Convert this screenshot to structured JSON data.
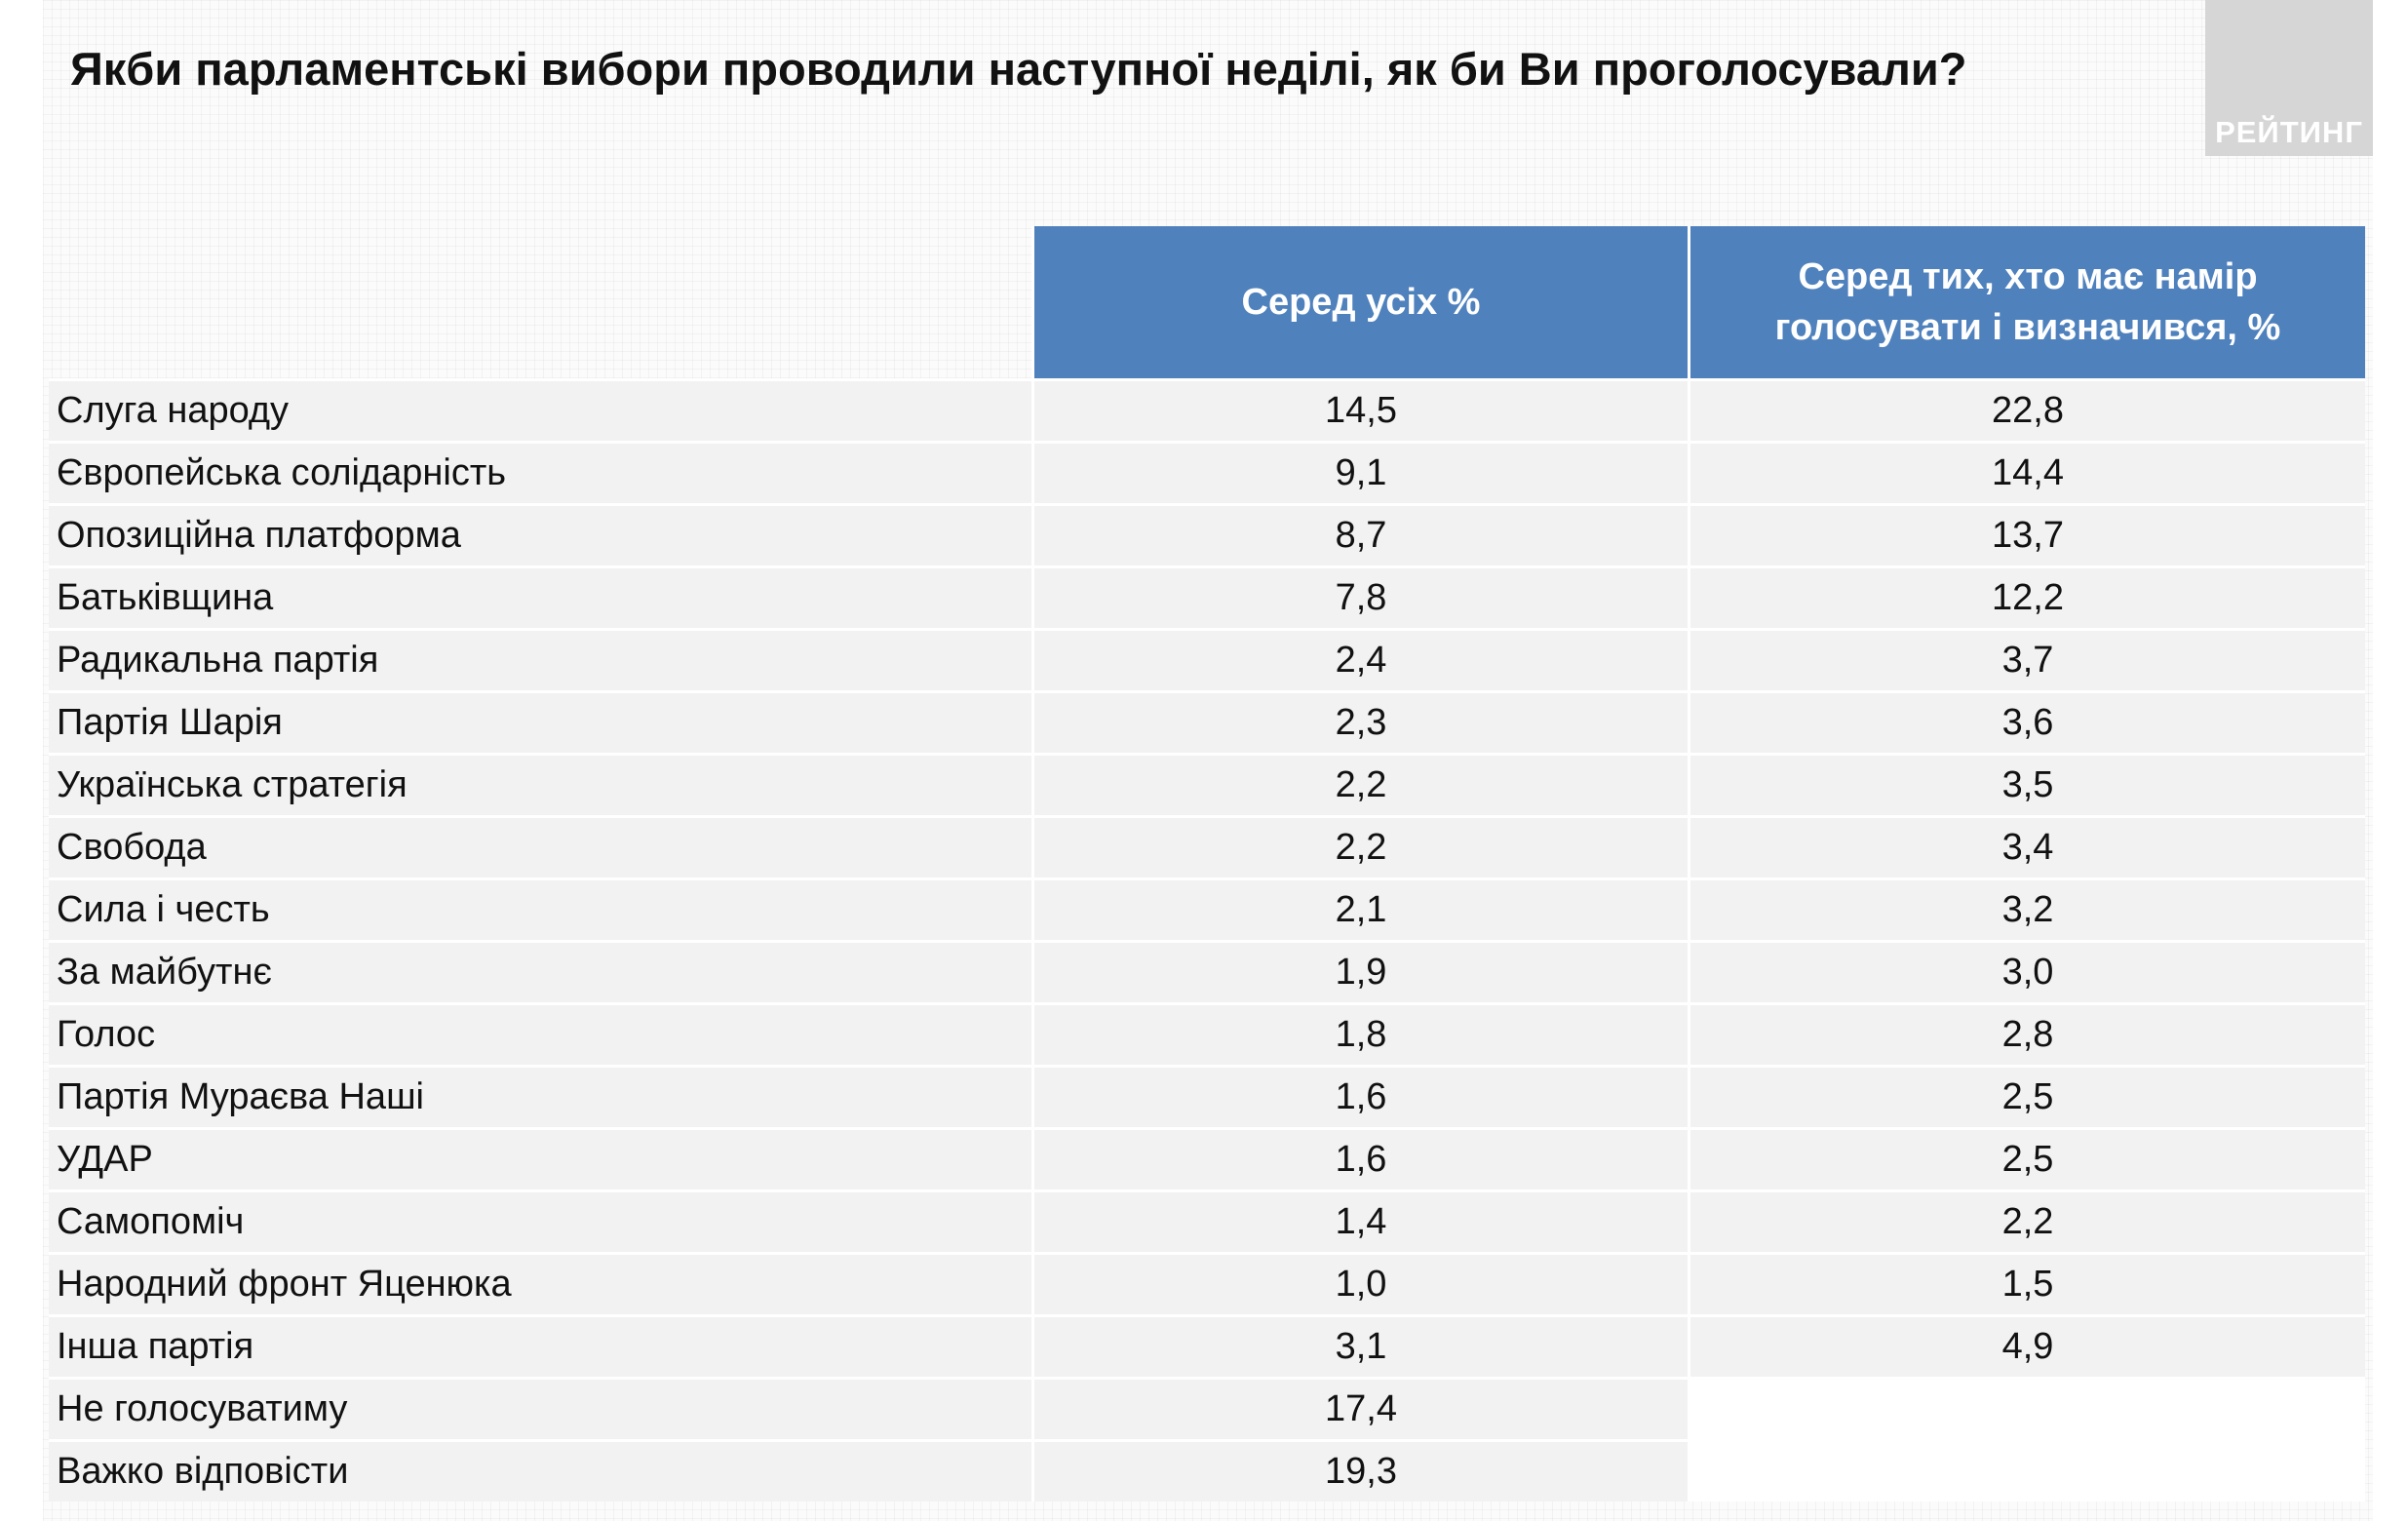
{
  "title": "Якби парламентські вибори проводили наступної неділі, як би Ви проголосували?",
  "logo_text": "РЕЙТИНГ",
  "colors": {
    "header_bg": "#4f81bd",
    "header_text": "#ffffff",
    "row_bg": "#f2f2f2",
    "logo_bg": "#d6d6d6"
  },
  "chart_data": {
    "type": "table",
    "title": "Якби парламентські вибори проводили наступної неділі, як би Ви проголосували?",
    "columns": [
      "",
      "Серед усіх %",
      "Серед тих, хто має намір голосувати і визначився, %"
    ],
    "rows": [
      {
        "party": "Слуга народу",
        "all": "14,5",
        "decided": "22,8"
      },
      {
        "party": "Європейська солідарність",
        "all": "9,1",
        "decided": "14,4"
      },
      {
        "party": "Опозиційна платформа",
        "all": "8,7",
        "decided": "13,7"
      },
      {
        "party": "Батьківщина",
        "all": "7,8",
        "decided": "12,2"
      },
      {
        "party": "Радикальна партія",
        "all": "2,4",
        "decided": "3,7"
      },
      {
        "party": "Партія Шарія",
        "all": "2,3",
        "decided": "3,6"
      },
      {
        "party": "Українська стратегія",
        "all": "2,2",
        "decided": "3,5"
      },
      {
        "party": "Свобода",
        "all": "2,2",
        "decided": "3,4"
      },
      {
        "party": "Сила і честь",
        "all": "2,1",
        "decided": "3,2"
      },
      {
        "party": "За майбутнє",
        "all": "1,9",
        "decided": "3,0"
      },
      {
        "party": "Голос",
        "all": "1,8",
        "decided": "2,8"
      },
      {
        "party": "Партія Мураєва Наші",
        "all": "1,6",
        "decided": "2,5"
      },
      {
        "party": "УДАР",
        "all": "1,6",
        "decided": "2,5"
      },
      {
        "party": "Самопоміч",
        "all": "1,4",
        "decided": "2,2"
      },
      {
        "party": "Народний фронт Яценюка",
        "all": "1,0",
        "decided": "1,5"
      },
      {
        "party": "Інша партія",
        "all": "3,1",
        "decided": "4,9"
      },
      {
        "party": "Не голосуватиму",
        "all": "17,4",
        "decided": null
      },
      {
        "party": "Важко відповісти",
        "all": "19,3",
        "decided": null
      }
    ]
  }
}
